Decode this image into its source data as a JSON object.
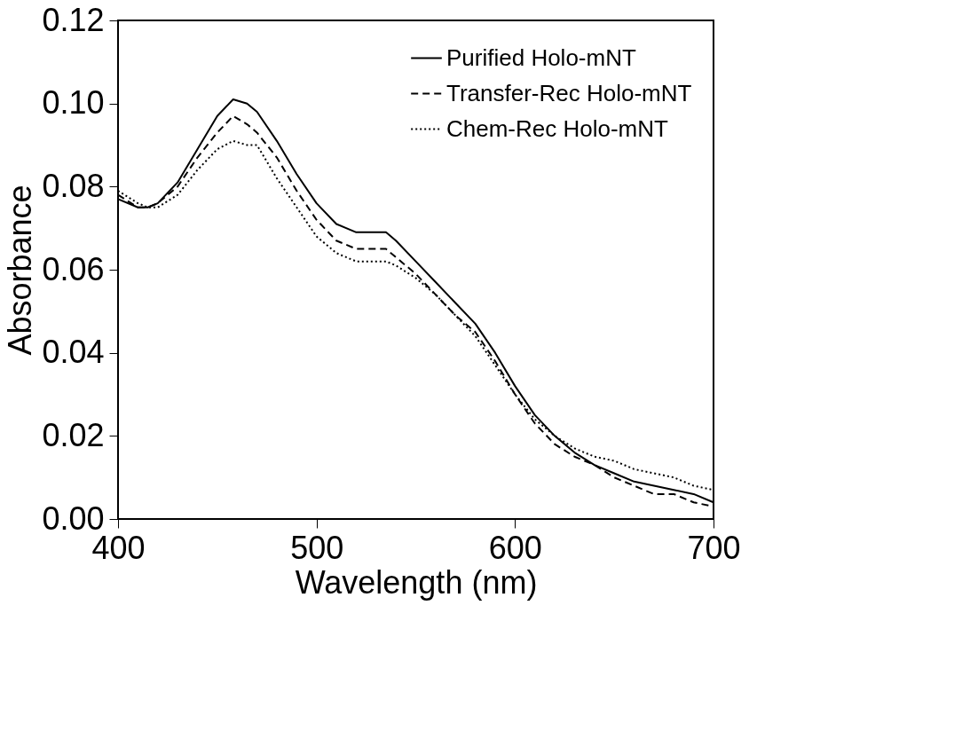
{
  "chart_data": {
    "type": "line",
    "xlabel": "Wavelength (nm)",
    "ylabel": "Absorbance",
    "xlim": [
      400,
      700
    ],
    "xticks": [
      400,
      500,
      600,
      700
    ],
    "ylim": [
      0,
      0.12
    ],
    "yticks": [
      {
        "value": 0,
        "label": "0.00"
      },
      0.02,
      0.04,
      0.06,
      0.08,
      {
        "value": 0.1,
        "label": "0.10"
      },
      0.12
    ],
    "grid": false,
    "legend": "top right",
    "marker": "none",
    "x": [
      400,
      410,
      415,
      420,
      430,
      440,
      450,
      458,
      465,
      470,
      480,
      490,
      500,
      510,
      520,
      530,
      535,
      540,
      550,
      560,
      570,
      580,
      590,
      600,
      610,
      620,
      630,
      640,
      650,
      660,
      670,
      680,
      690,
      700
    ],
    "series": [
      {
        "name": "Purified Holo-mNT",
        "color": "#000000",
        "line_style": "solid",
        "values": [
          0.077,
          0.075,
          0.075,
          0.076,
          0.081,
          0.089,
          0.097,
          0.101,
          0.1,
          0.098,
          0.091,
          0.083,
          0.076,
          0.071,
          0.069,
          0.069,
          0.069,
          0.067,
          0.062,
          0.057,
          0.052,
          0.047,
          0.04,
          0.032,
          0.025,
          0.02,
          0.016,
          0.013,
          0.011,
          0.009,
          0.008,
          0.007,
          0.006,
          0.004
        ]
      },
      {
        "name": "Transfer-Rec Holo-mNT",
        "color": "#000000",
        "line_style": "dashed",
        "values": [
          0.078,
          0.075,
          0.075,
          0.076,
          0.08,
          0.087,
          0.093,
          0.097,
          0.095,
          0.093,
          0.087,
          0.079,
          0.072,
          0.067,
          0.065,
          0.065,
          0.065,
          0.063,
          0.059,
          0.054,
          0.049,
          0.045,
          0.038,
          0.03,
          0.023,
          0.018,
          0.015,
          0.013,
          0.01,
          0.008,
          0.006,
          0.006,
          0.004,
          0.003
        ]
      },
      {
        "name": "Chem-Rec Holo-mNT",
        "color": "#000000",
        "line_style": "dotted",
        "values": [
          0.079,
          0.076,
          0.075,
          0.075,
          0.078,
          0.084,
          0.089,
          0.091,
          0.09,
          0.09,
          0.082,
          0.075,
          0.068,
          0.064,
          0.062,
          0.062,
          0.062,
          0.061,
          0.058,
          0.054,
          0.049,
          0.044,
          0.037,
          0.03,
          0.024,
          0.02,
          0.017,
          0.015,
          0.014,
          0.012,
          0.011,
          0.01,
          0.008,
          0.007
        ]
      }
    ]
  }
}
